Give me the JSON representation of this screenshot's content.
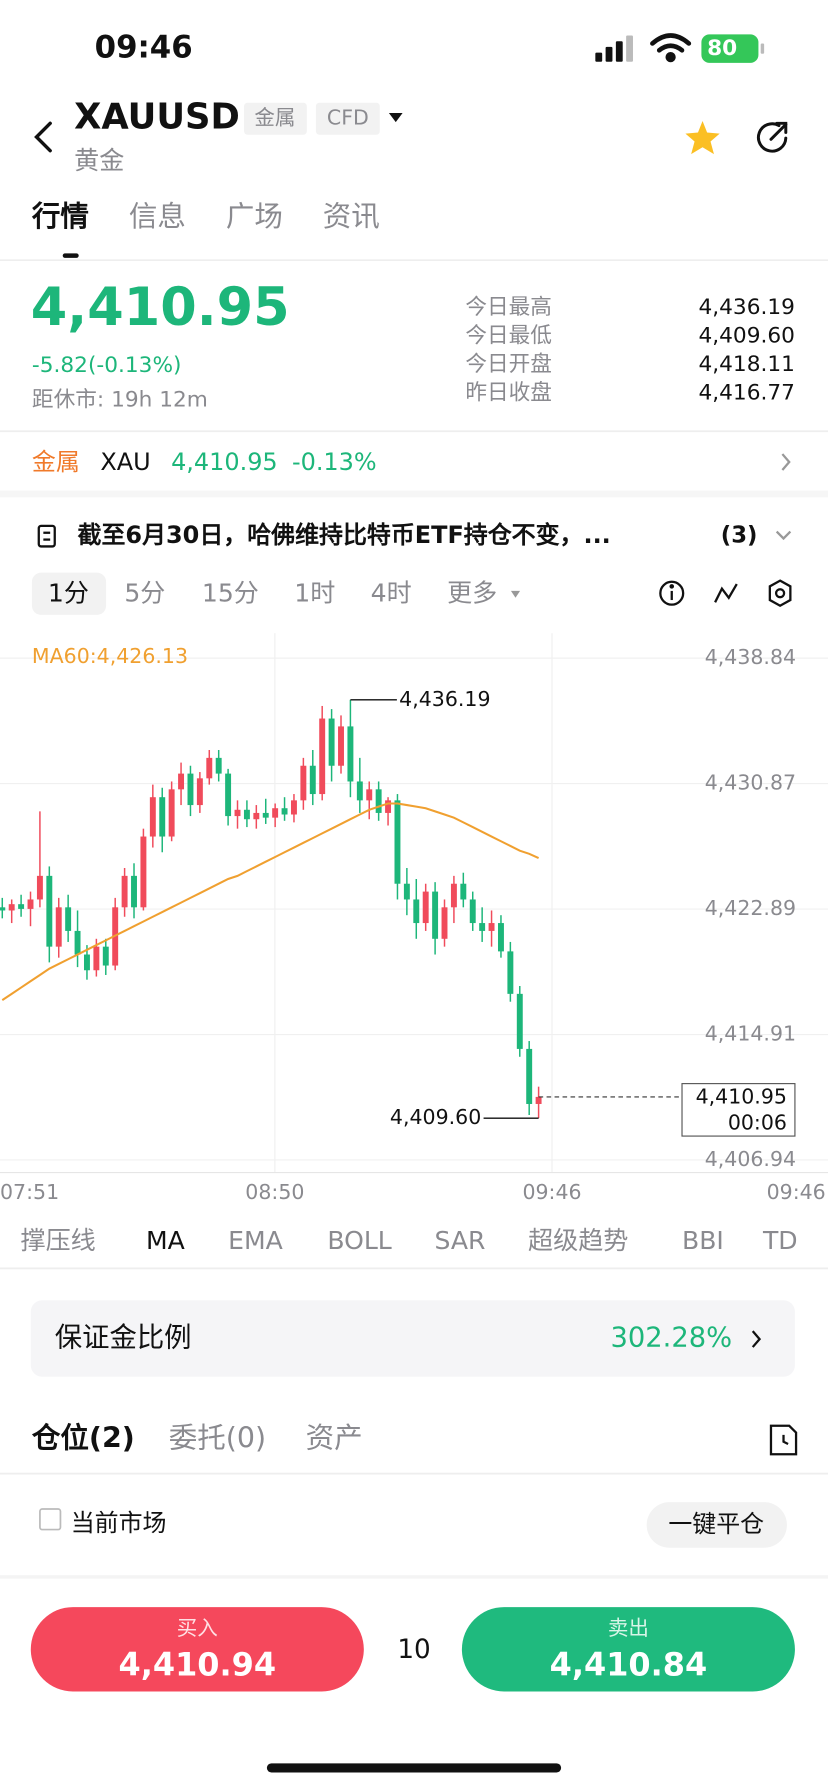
{
  "status": {
    "time": "09:46",
    "battery": "80"
  },
  "header": {
    "symbol": "XAUUSD",
    "tags": [
      "金属",
      "CFD"
    ],
    "name": "黄金"
  },
  "tabs": [
    "行情",
    "信息",
    "广场",
    "资讯"
  ],
  "quote": {
    "price": "4,410.95",
    "change": "-5.82(-0.13%)",
    "close_time": "距休市: 19h 12m",
    "stats": [
      {
        "label": "今日最高",
        "value": "4,436.19"
      },
      {
        "label": "今日最低",
        "value": "4,409.60"
      },
      {
        "label": "今日开盘",
        "value": "4,418.11"
      },
      {
        "label": "昨日收盘",
        "value": "4,416.77"
      }
    ]
  },
  "related": {
    "tag": "金属",
    "symbol": "XAU",
    "price": "4,410.95",
    "change": "-0.13%"
  },
  "news": {
    "text": "截至6月30日，哈佛维持比特币ETF持仓不变，...",
    "count": "(3)"
  },
  "periods": [
    "1分",
    "5分",
    "15分",
    "1时",
    "4时",
    "更多"
  ],
  "chart_data": {
    "type": "candlestick",
    "up_color": "#f04b5b",
    "down_color": "#1db67a",
    "ma_color": "#f0a030",
    "ma_label": "MA60:4,426.13",
    "ylim": [
      4406.14,
      4440.43
    ],
    "yticks": [
      {
        "value": 4438.84,
        "label": "4,438.84"
      },
      {
        "value": 4430.87,
        "label": "4,430.87"
      },
      {
        "value": 4422.89,
        "label": "4,422.89"
      },
      {
        "value": 4414.91,
        "label": "4,414.91"
      },
      {
        "value": 4406.94,
        "label": "4,406.94"
      }
    ],
    "x_labels": [
      "07:51",
      "08:50",
      "09:46",
      "09:46"
    ],
    "high_label": "4,436.19",
    "low_label": "4,409.60",
    "last_label": "4,410.95",
    "countdown": "00:06",
    "candles": [
      [
        4423.0,
        4423.6,
        4422.3,
        4422.8
      ],
      [
        4422.8,
        4423.5,
        4422.0,
        4423.2
      ],
      [
        4423.2,
        4423.8,
        4422.4,
        4422.9
      ],
      [
        4422.9,
        4424.0,
        4421.8,
        4423.5
      ],
      [
        4423.5,
        4429.1,
        4423.0,
        4425.0
      ],
      [
        4425.0,
        4425.6,
        4419.5,
        4420.5
      ],
      [
        4420.5,
        4423.6,
        4419.8,
        4423.0
      ],
      [
        4423.0,
        4423.8,
        4420.8,
        4421.5
      ],
      [
        4421.5,
        4422.8,
        4419.2,
        4420.0
      ],
      [
        4420.0,
        4420.6,
        4418.4,
        4419.0
      ],
      [
        4419.0,
        4421.0,
        4418.6,
        4420.5
      ],
      [
        4420.5,
        4421.0,
        4418.7,
        4419.3
      ],
      [
        4419.3,
        4423.6,
        4419.0,
        4423.0
      ],
      [
        4423.0,
        4425.5,
        4422.4,
        4425.0
      ],
      [
        4425.0,
        4425.8,
        4422.3,
        4423.0
      ],
      [
        4423.0,
        4428.0,
        4422.8,
        4427.5
      ],
      [
        4427.5,
        4430.8,
        4426.8,
        4430.0
      ],
      [
        4430.0,
        4430.6,
        4426.5,
        4427.5
      ],
      [
        4427.5,
        4431.0,
        4427.2,
        4430.5
      ],
      [
        4430.5,
        4432.2,
        4429.5,
        4431.5
      ],
      [
        4431.5,
        4432.0,
        4428.8,
        4429.5
      ],
      [
        4429.5,
        4431.6,
        4429.0,
        4431.2
      ],
      [
        4431.2,
        4433.0,
        4430.8,
        4432.5
      ],
      [
        4432.5,
        4433.0,
        4431.0,
        4431.5
      ],
      [
        4431.5,
        4431.8,
        4428.2,
        4428.8
      ],
      [
        4428.8,
        4429.8,
        4428.0,
        4429.2
      ],
      [
        4429.2,
        4429.8,
        4428.1,
        4428.6
      ],
      [
        4428.6,
        4429.5,
        4428.0,
        4429.0
      ],
      [
        4429.0,
        4429.9,
        4428.3,
        4428.7
      ],
      [
        4428.7,
        4429.6,
        4428.1,
        4429.3
      ],
      [
        4429.3,
        4430.0,
        4428.5,
        4428.9
      ],
      [
        4428.9,
        4430.2,
        4428.4,
        4429.8
      ],
      [
        4429.8,
        4432.5,
        4429.2,
        4432.0
      ],
      [
        4432.0,
        4433.0,
        4429.5,
        4430.2
      ],
      [
        4430.2,
        4435.8,
        4429.8,
        4435.0
      ],
      [
        4435.0,
        4435.6,
        4431.0,
        4432.0
      ],
      [
        4432.0,
        4435.2,
        4431.5,
        4434.5
      ],
      [
        4434.5,
        4436.19,
        4430.0,
        4431.0
      ],
      [
        4431.0,
        4432.5,
        4429.0,
        4429.8
      ],
      [
        4429.8,
        4431.0,
        4428.6,
        4430.5
      ],
      [
        4430.5,
        4431.0,
        4428.5,
        4429.0
      ],
      [
        4429.0,
        4430.0,
        4428.2,
        4429.8
      ],
      [
        4429.8,
        4430.2,
        4423.5,
        4424.5
      ],
      [
        4424.5,
        4425.5,
        4422.5,
        4423.5
      ],
      [
        4423.5,
        4424.8,
        4421.0,
        4422.0
      ],
      [
        4422.0,
        4424.5,
        4421.5,
        4424.0
      ],
      [
        4424.0,
        4424.6,
        4420.0,
        4421.0
      ],
      [
        4421.0,
        4423.5,
        4420.5,
        4423.0
      ],
      [
        4423.0,
        4425.0,
        4422.0,
        4424.5
      ],
      [
        4424.5,
        4425.2,
        4423.0,
        4423.5
      ],
      [
        4423.5,
        4424.0,
        4421.5,
        4422.0
      ],
      [
        4422.0,
        4423.0,
        4420.8,
        4421.5
      ],
      [
        4421.5,
        4422.8,
        4420.5,
        4422.0
      ],
      [
        4422.0,
        4422.5,
        4419.8,
        4420.2
      ],
      [
        4420.2,
        4420.8,
        4417.0,
        4417.5
      ],
      [
        4417.5,
        4418.0,
        4413.5,
        4414.0
      ],
      [
        4414.0,
        4414.5,
        4409.8,
        4410.5
      ],
      [
        4410.5,
        4411.6,
        4409.6,
        4410.95
      ]
    ],
    "ma_values": [
      4417.1,
      4417.5,
      4417.9,
      4418.3,
      4418.7,
      4419.1,
      4419.4,
      4419.7,
      4420.0,
      4420.3,
      4420.6,
      4420.9,
      4421.2,
      4421.5,
      4421.8,
      4422.1,
      4422.4,
      4422.7,
      4423.0,
      4423.3,
      4423.6,
      4423.9,
      4424.2,
      4424.5,
      4424.8,
      4425.0,
      4425.3,
      4425.6,
      4425.9,
      4426.2,
      4426.5,
      4426.8,
      4427.1,
      4427.4,
      4427.7,
      4428.0,
      4428.3,
      4428.6,
      4428.9,
      4429.2,
      4429.4,
      4429.6,
      4429.6,
      4429.5,
      4429.4,
      4429.3,
      4429.1,
      4428.9,
      4428.7,
      4428.4,
      4428.1,
      4427.8,
      4427.5,
      4427.2,
      4426.9,
      4426.6,
      4426.4,
      4426.13
    ]
  },
  "indicators": [
    "撑压线",
    "MA",
    "EMA",
    "BOLL",
    "SAR",
    "超级趋势",
    "BBI",
    "TD"
  ],
  "margin": {
    "label": "保证金比例",
    "value": "302.28%"
  },
  "positions": {
    "tabs": [
      "仓位(2)",
      "委托(0)",
      "资产"
    ],
    "filter": "当前市场",
    "close_all": "一键平仓"
  },
  "trade": {
    "buy": {
      "label": "买入",
      "price": "4,410.94"
    },
    "qty": "10",
    "sell": {
      "label": "卖出",
      "price": "4,410.84"
    }
  }
}
